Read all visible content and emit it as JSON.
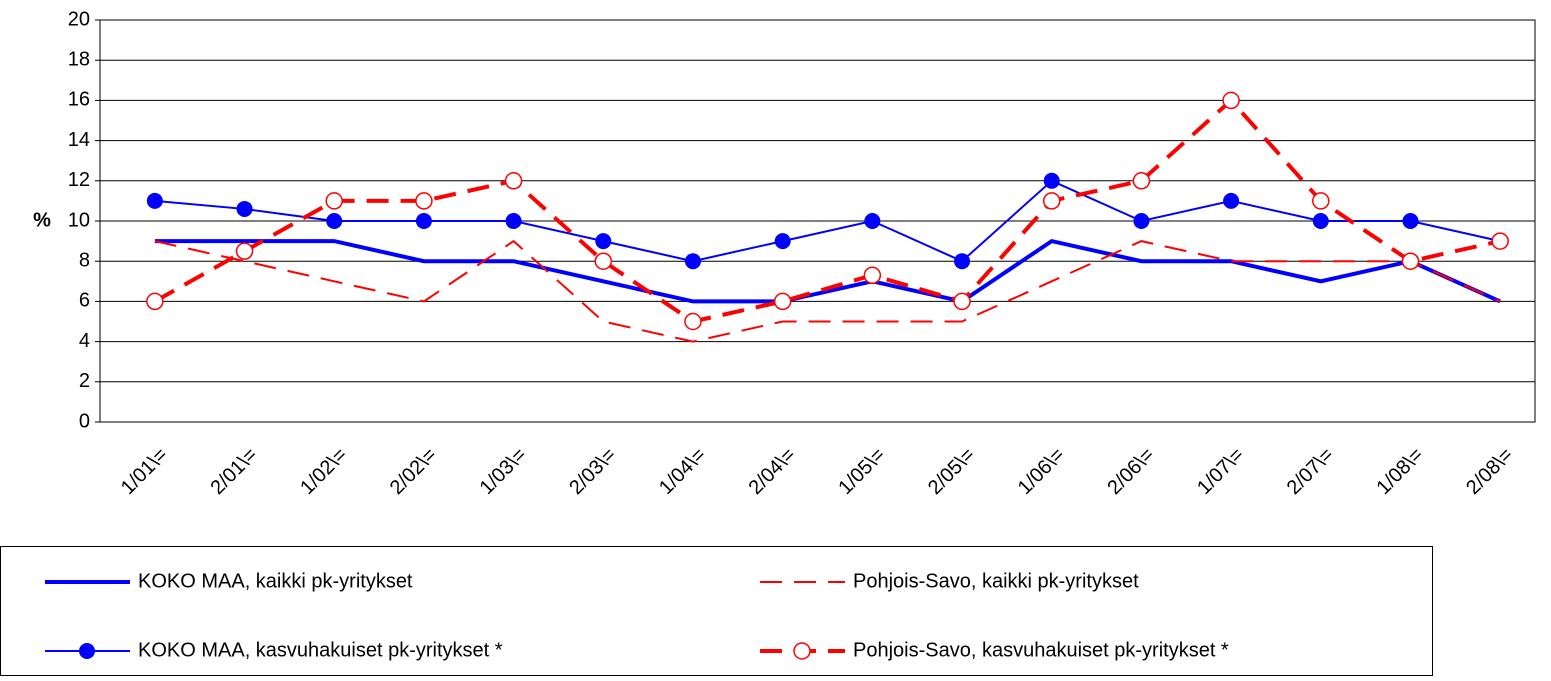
{
  "chart_data": {
    "type": "line",
    "y_label": "%",
    "categories": [
      "1/01\\=",
      "2/01\\=",
      "1/02\\=",
      "2/02\\=",
      "1/03\\=",
      "2/03\\=",
      "1/04\\=",
      "2/04\\=",
      "1/05\\=",
      "2/05\\=",
      "1/06\\=",
      "2/06\\=",
      "1/07\\=",
      "2/07\\=",
      "1/08\\=",
      "2/08\\="
    ],
    "series": [
      {
        "name": "KOKO MAA, kaikki pk-yritykset",
        "color": "#0000ff",
        "dash": false,
        "marker": "none",
        "values": [
          9,
          9,
          9,
          8,
          8,
          7,
          6,
          6,
          7,
          6,
          9,
          8,
          8,
          7,
          8,
          6
        ]
      },
      {
        "name": "Pohjois-Savo, kaikki pk-yritykset",
        "color": "#ff0000",
        "dash": true,
        "marker": "none",
        "values": [
          9,
          8,
          7,
          6,
          9,
          5,
          4,
          5,
          5,
          5,
          7,
          9,
          8,
          8,
          8,
          6
        ]
      },
      {
        "name": "KOKO MAA, kasvuhakuiset pk-yritykset *",
        "color": "#0000ff",
        "dash": false,
        "marker": "filled",
        "values": [
          11,
          10.6,
          10,
          10,
          10,
          9,
          8,
          9,
          10,
          8,
          12,
          10,
          11,
          10,
          10,
          9
        ]
      },
      {
        "name": "Pohjois-Savo, kasvuhakuiset pk-yritykset *",
        "color": "#ff0000",
        "dash": true,
        "marker": "open",
        "values": [
          6,
          8.5,
          11,
          11,
          12,
          8,
          5,
          6,
          7.3,
          6,
          11,
          12,
          16,
          11,
          8,
          9
        ]
      }
    ],
    "ylim": [
      0,
      20
    ],
    "yticks": [
      0,
      2,
      4,
      6,
      8,
      10,
      12,
      14,
      16,
      18,
      20
    ],
    "grid": true
  }
}
